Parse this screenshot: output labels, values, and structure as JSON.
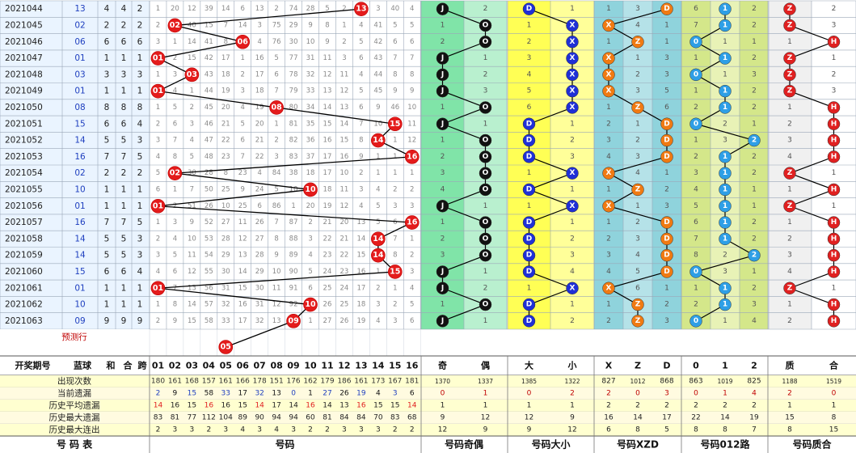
{
  "chart_data": {
    "type": "table",
    "columns": {
      "period": "开奖期号",
      "blue": "蓝球",
      "sum": "和",
      "mod": "合",
      "span": "跨",
      "odd": "奇",
      "even": "偶",
      "big": "大",
      "small": "小",
      "x": "X",
      "z": "Z",
      "d": "D",
      "r0": "0",
      "r1": "1",
      "r2": "2",
      "prime": "质",
      "composite": "合"
    },
    "numbers": [
      "01",
      "02",
      "03",
      "04",
      "05",
      "06",
      "07",
      "08",
      "09",
      "10",
      "11",
      "12",
      "13",
      "14",
      "15",
      "16"
    ],
    "symbols": {
      "odd": "J",
      "even": "O",
      "big": "D",
      "small": "X",
      "x": "X",
      "z": "Z",
      "d": "D",
      "prime": "Z",
      "composite": "H"
    },
    "preview_label": "预测行",
    "preview_ball": "05",
    "rows": [
      {
        "period": "2021044",
        "blue": "13",
        "sum": "4",
        "mod": "4",
        "span": "2",
        "miss": [
          "1",
          "20",
          "12",
          "39",
          "14",
          "6",
          "13",
          "2",
          "74",
          "28",
          "5",
          "2",
          "13",
          "3",
          "40",
          "4"
        ],
        "oe": [
          "J",
          "2"
        ],
        "bs": [
          "D",
          "1"
        ],
        "xzd": [
          "1",
          "3",
          "D"
        ],
        "r012": [
          "6",
          "1",
          "2"
        ],
        "pc": [
          "Z",
          "2"
        ]
      },
      {
        "period": "2021045",
        "blue": "02",
        "sum": "2",
        "mod": "2",
        "span": "2",
        "miss": [
          "2",
          "02",
          "40",
          "15",
          "7",
          "14",
          "3",
          "75",
          "29",
          "9",
          "8",
          "1",
          "4",
          "41",
          "5",
          "5"
        ],
        "oe": [
          "1",
          "O"
        ],
        "bs": [
          "1",
          "X"
        ],
        "xzd": [
          "X",
          "4",
          "1"
        ],
        "r012": [
          "7",
          "1",
          "2"
        ],
        "pc": [
          "Z",
          "3"
        ]
      },
      {
        "period": "2021046",
        "blue": "06",
        "sum": "6",
        "mod": "6",
        "span": "6",
        "miss": [
          "3",
          "1",
          "14",
          "41",
          "8",
          "06",
          "4",
          "76",
          "30",
          "10",
          "9",
          "2",
          "5",
          "42",
          "6",
          "6"
        ],
        "oe": [
          "2",
          "O"
        ],
        "bs": [
          "2",
          "X"
        ],
        "xzd": [
          "1",
          "Z",
          "1"
        ],
        "r012": [
          "0",
          "1",
          "1"
        ],
        "pc": [
          "1",
          "H"
        ]
      },
      {
        "period": "2021047",
        "blue": "01",
        "sum": "1",
        "mod": "1",
        "span": "1",
        "miss": [
          "01",
          "2",
          "15",
          "42",
          "17",
          "1",
          "16",
          "5",
          "77",
          "31",
          "11",
          "3",
          "6",
          "43",
          "7",
          "7"
        ],
        "oe": [
          "J",
          "1"
        ],
        "bs": [
          "3",
          "X"
        ],
        "xzd": [
          "X",
          "1",
          "3"
        ],
        "r012": [
          "1",
          "1",
          "2"
        ],
        "pc": [
          "Z",
          "1"
        ]
      },
      {
        "period": "2021048",
        "blue": "03",
        "sum": "3",
        "mod": "3",
        "span": "3",
        "miss": [
          "1",
          "3",
          "03",
          "43",
          "18",
          "2",
          "17",
          "6",
          "78",
          "32",
          "12",
          "11",
          "4",
          "44",
          "8",
          "8"
        ],
        "oe": [
          "J",
          "2"
        ],
        "bs": [
          "4",
          "X"
        ],
        "xzd": [
          "X",
          "2",
          "3"
        ],
        "r012": [
          "0",
          "1",
          "3"
        ],
        "pc": [
          "Z",
          "2"
        ]
      },
      {
        "period": "2021049",
        "blue": "01",
        "sum": "1",
        "mod": "1",
        "span": "1",
        "miss": [
          "01",
          "4",
          "1",
          "44",
          "19",
          "3",
          "18",
          "7",
          "79",
          "33",
          "13",
          "12",
          "5",
          "45",
          "9",
          "9"
        ],
        "oe": [
          "J",
          "3"
        ],
        "bs": [
          "5",
          "X"
        ],
        "xzd": [
          "X",
          "3",
          "5"
        ],
        "r012": [
          "1",
          "1",
          "2"
        ],
        "pc": [
          "Z",
          "3"
        ]
      },
      {
        "period": "2021050",
        "blue": "08",
        "sum": "8",
        "mod": "8",
        "span": "8",
        "miss": [
          "1",
          "5",
          "2",
          "45",
          "20",
          "4",
          "19",
          "08",
          "80",
          "34",
          "14",
          "13",
          "6",
          "9",
          "46",
          "10"
        ],
        "oe": [
          "1",
          "O"
        ],
        "bs": [
          "6",
          "X"
        ],
        "xzd": [
          "1",
          "Z",
          "6"
        ],
        "r012": [
          "2",
          "1",
          "2"
        ],
        "pc": [
          "1",
          "H"
        ]
      },
      {
        "period": "2021051",
        "blue": "15",
        "sum": "6",
        "mod": "6",
        "span": "4",
        "miss": [
          "2",
          "6",
          "3",
          "46",
          "21",
          "5",
          "20",
          "1",
          "81",
          "35",
          "15",
          "14",
          "7",
          "10",
          "15",
          "11"
        ],
        "oe": [
          "J",
          "1"
        ],
        "bs": [
          "D",
          "1"
        ],
        "xzd": [
          "2",
          "1",
          "D"
        ],
        "r012": [
          "0",
          "2",
          "1"
        ],
        "pc": [
          "2",
          "H"
        ]
      },
      {
        "period": "2021052",
        "blue": "14",
        "sum": "5",
        "mod": "5",
        "span": "3",
        "miss": [
          "3",
          "7",
          "4",
          "47",
          "22",
          "6",
          "21",
          "2",
          "82",
          "36",
          "16",
          "15",
          "8",
          "14",
          "1",
          "12"
        ],
        "oe": [
          "1",
          "O"
        ],
        "bs": [
          "D",
          "2"
        ],
        "xzd": [
          "3",
          "2",
          "D"
        ],
        "r012": [
          "1",
          "3",
          "2"
        ],
        "pc": [
          "3",
          "H"
        ]
      },
      {
        "period": "2021053",
        "blue": "16",
        "sum": "7",
        "mod": "7",
        "span": "5",
        "miss": [
          "4",
          "8",
          "5",
          "48",
          "23",
          "7",
          "22",
          "3",
          "83",
          "37",
          "17",
          "16",
          "9",
          "1",
          "1",
          "16"
        ],
        "oe": [
          "2",
          "O"
        ],
        "bs": [
          "D",
          "3"
        ],
        "xzd": [
          "4",
          "3",
          "D"
        ],
        "r012": [
          "2",
          "1",
          "2"
        ],
        "pc": [
          "4",
          "H"
        ]
      },
      {
        "period": "2021054",
        "blue": "02",
        "sum": "2",
        "mod": "2",
        "span": "2",
        "miss": [
          "5",
          "02",
          "30",
          "28",
          "8",
          "23",
          "4",
          "84",
          "38",
          "18",
          "17",
          "10",
          "2",
          "1",
          "1",
          "1"
        ],
        "oe": [
          "3",
          "O"
        ],
        "bs": [
          "1",
          "X"
        ],
        "xzd": [
          "X",
          "4",
          "1"
        ],
        "r012": [
          "3",
          "1",
          "2"
        ],
        "pc": [
          "Z",
          "1"
        ]
      },
      {
        "period": "2021055",
        "blue": "10",
        "sum": "1",
        "mod": "1",
        "span": "1",
        "miss": [
          "6",
          "1",
          "7",
          "50",
          "25",
          "9",
          "24",
          "5",
          "10",
          "19",
          "18",
          "11",
          "3",
          "4",
          "2",
          "2"
        ],
        "oe": [
          "4",
          "O"
        ],
        "bs": [
          "D",
          "1"
        ],
        "xzd": [
          "1",
          "Z",
          "2"
        ],
        "r012": [
          "4",
          "1",
          "1"
        ],
        "pc": [
          "1",
          "H"
        ]
      },
      {
        "period": "2021056",
        "blue": "01",
        "sum": "1",
        "mod": "1",
        "span": "1",
        "miss": [
          "01",
          "2",
          "51",
          "26",
          "10",
          "25",
          "6",
          "86",
          "1",
          "20",
          "19",
          "12",
          "4",
          "5",
          "3",
          "3"
        ],
        "oe": [
          "J",
          "1"
        ],
        "bs": [
          "1",
          "X"
        ],
        "xzd": [
          "X",
          "1",
          "3"
        ],
        "r012": [
          "5",
          "1",
          "1"
        ],
        "pc": [
          "Z",
          "1"
        ]
      },
      {
        "period": "2021057",
        "blue": "16",
        "sum": "7",
        "mod": "7",
        "span": "5",
        "miss": [
          "1",
          "3",
          "9",
          "52",
          "27",
          "11",
          "26",
          "7",
          "87",
          "2",
          "21",
          "20",
          "13",
          "5",
          "6",
          "16"
        ],
        "oe": [
          "1",
          "O"
        ],
        "bs": [
          "D",
          "1"
        ],
        "xzd": [
          "1",
          "2",
          "D"
        ],
        "r012": [
          "6",
          "1",
          "2"
        ],
        "pc": [
          "1",
          "H"
        ]
      },
      {
        "period": "2021058",
        "blue": "14",
        "sum": "5",
        "mod": "5",
        "span": "3",
        "miss": [
          "2",
          "4",
          "10",
          "53",
          "28",
          "12",
          "27",
          "8",
          "88",
          "3",
          "22",
          "21",
          "14",
          "14",
          "7",
          "1"
        ],
        "oe": [
          "2",
          "O"
        ],
        "bs": [
          "D",
          "2"
        ],
        "xzd": [
          "2",
          "3",
          "D"
        ],
        "r012": [
          "7",
          "1",
          "2"
        ],
        "pc": [
          "2",
          "H"
        ]
      },
      {
        "period": "2021059",
        "blue": "14",
        "sum": "5",
        "mod": "5",
        "span": "3",
        "miss": [
          "3",
          "5",
          "11",
          "54",
          "29",
          "13",
          "28",
          "9",
          "89",
          "4",
          "23",
          "22",
          "15",
          "14",
          "8",
          "2"
        ],
        "oe": [
          "3",
          "O"
        ],
        "bs": [
          "D",
          "3"
        ],
        "xzd": [
          "3",
          "4",
          "D"
        ],
        "r012": [
          "8",
          "2",
          "2"
        ],
        "pc": [
          "3",
          "H"
        ]
      },
      {
        "period": "2021060",
        "blue": "15",
        "sum": "6",
        "mod": "6",
        "span": "4",
        "miss": [
          "4",
          "6",
          "12",
          "55",
          "30",
          "14",
          "29",
          "10",
          "90",
          "5",
          "24",
          "23",
          "16",
          "1",
          "15",
          "3"
        ],
        "oe": [
          "J",
          "1"
        ],
        "bs": [
          "D",
          "4"
        ],
        "xzd": [
          "4",
          "5",
          "D"
        ],
        "r012": [
          "0",
          "3",
          "1"
        ],
        "pc": [
          "4",
          "H"
        ]
      },
      {
        "period": "2021061",
        "blue": "01",
        "sum": "1",
        "mod": "1",
        "span": "1",
        "miss": [
          "01",
          "7",
          "13",
          "56",
          "31",
          "15",
          "30",
          "11",
          "91",
          "6",
          "25",
          "24",
          "17",
          "2",
          "1",
          "4"
        ],
        "oe": [
          "J",
          "2"
        ],
        "bs": [
          "1",
          "X"
        ],
        "xzd": [
          "X",
          "6",
          "1"
        ],
        "r012": [
          "1",
          "1",
          "2"
        ],
        "pc": [
          "Z",
          "1"
        ]
      },
      {
        "period": "2021062",
        "blue": "10",
        "sum": "1",
        "mod": "1",
        "span": "1",
        "miss": [
          "1",
          "8",
          "14",
          "57",
          "32",
          "16",
          "31",
          "12",
          "92",
          "10",
          "26",
          "25",
          "18",
          "3",
          "2",
          "5"
        ],
        "oe": [
          "1",
          "O"
        ],
        "bs": [
          "D",
          "1"
        ],
        "xzd": [
          "1",
          "Z",
          "2"
        ],
        "r012": [
          "2",
          "1",
          "3"
        ],
        "pc": [
          "1",
          "H"
        ]
      },
      {
        "period": "2021063",
        "blue": "09",
        "sum": "9",
        "mod": "9",
        "span": "9",
        "miss": [
          "2",
          "9",
          "15",
          "58",
          "33",
          "17",
          "32",
          "13",
          "09",
          "1",
          "27",
          "26",
          "19",
          "4",
          "3",
          "6"
        ],
        "oe": [
          "J",
          "1"
        ],
        "bs": [
          "D",
          "2"
        ],
        "xzd": [
          "2",
          "Z",
          "3"
        ],
        "r012": [
          "0",
          "1",
          "4"
        ],
        "pc": [
          "2",
          "H"
        ]
      }
    ],
    "stats": [
      {
        "label": "出现次数",
        "nums": [
          "180",
          "161",
          "168",
          "157",
          "161",
          "166",
          "178",
          "151",
          "176",
          "162",
          "179",
          "186",
          "161",
          "173",
          "167",
          "181"
        ],
        "oe": [
          "1370",
          "1337"
        ],
        "bs": [
          "1385",
          "1322"
        ],
        "xzd": [
          "827",
          "1012",
          "868"
        ],
        "r012": [
          "863",
          "1019",
          "825"
        ],
        "pc": [
          "1188",
          "1519"
        ]
      },
      {
        "label": "当前遗漏",
        "nums": [
          "2",
          "9",
          "15",
          "58",
          "33",
          "17",
          "32",
          "13",
          "0",
          "1",
          "27",
          "26",
          "19",
          "4",
          "3",
          "6"
        ],
        "oe": [
          "0",
          "1"
        ],
        "bs": [
          "0",
          "2"
        ],
        "xzd": [
          "2",
          "0",
          "3"
        ],
        "r012": [
          "0",
          "1",
          "4"
        ],
        "pc": [
          "2",
          "0"
        ]
      },
      {
        "label": "历史平均遗漏",
        "nums": [
          "14",
          "16",
          "15",
          "16",
          "16",
          "15",
          "14",
          "17",
          "14",
          "16",
          "14",
          "13",
          "16",
          "15",
          "15",
          "14"
        ],
        "oe": [
          "1",
          "1"
        ],
        "bs": [
          "1",
          "1"
        ],
        "xzd": [
          "2",
          "2",
          "2"
        ],
        "r012": [
          "2",
          "2",
          "2"
        ],
        "pc": [
          "1",
          "1"
        ]
      },
      {
        "label": "历史最大遗漏",
        "nums": [
          "83",
          "81",
          "77",
          "112",
          "104",
          "89",
          "90",
          "94",
          "94",
          "60",
          "81",
          "84",
          "84",
          "70",
          "83",
          "68"
        ],
        "oe": [
          "9",
          "12"
        ],
        "bs": [
          "12",
          "9"
        ],
        "xzd": [
          "16",
          "14",
          "17"
        ],
        "r012": [
          "22",
          "14",
          "19"
        ],
        "pc": [
          "15",
          "8"
        ]
      },
      {
        "label": "历史最大连出",
        "nums": [
          "2",
          "3",
          "3",
          "2",
          "3",
          "4",
          "3",
          "4",
          "3",
          "2",
          "2",
          "3",
          "3",
          "3",
          "2",
          "2"
        ],
        "oe": [
          "12",
          "9"
        ],
        "bs": [
          "9",
          "12"
        ],
        "xzd": [
          "6",
          "8",
          "5"
        ],
        "r012": [
          "8",
          "8",
          "7"
        ],
        "pc": [
          "8",
          "15"
        ]
      }
    ],
    "footer": [
      "号 码 表",
      "号码",
      "号码奇偶",
      "号码大小",
      "号码XZD",
      "号码012路",
      "号码质合"
    ]
  }
}
